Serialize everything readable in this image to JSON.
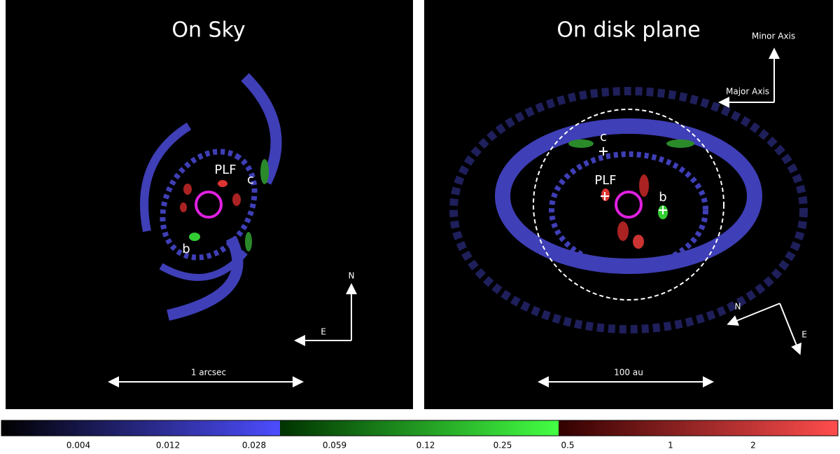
{
  "panels": [
    {
      "title": "On Sky",
      "labels": [
        "PLF",
        "c",
        "b"
      ],
      "compass": [
        "N",
        "E"
      ],
      "scale_bar": "1 arcsec"
    },
    {
      "title": "On disk plane",
      "axes": [
        "Minor Axis",
        "Major Axis"
      ],
      "labels": [
        "c",
        "PLF",
        "b"
      ],
      "compass": [
        "N",
        "E"
      ],
      "scale_bar": "100 au"
    }
  ],
  "colorbar": {
    "ticks": [
      "0.004",
      "0.012",
      "0.028",
      "0.059",
      "0.12",
      "0.25",
      "0.5",
      "1",
      "2"
    ]
  }
}
